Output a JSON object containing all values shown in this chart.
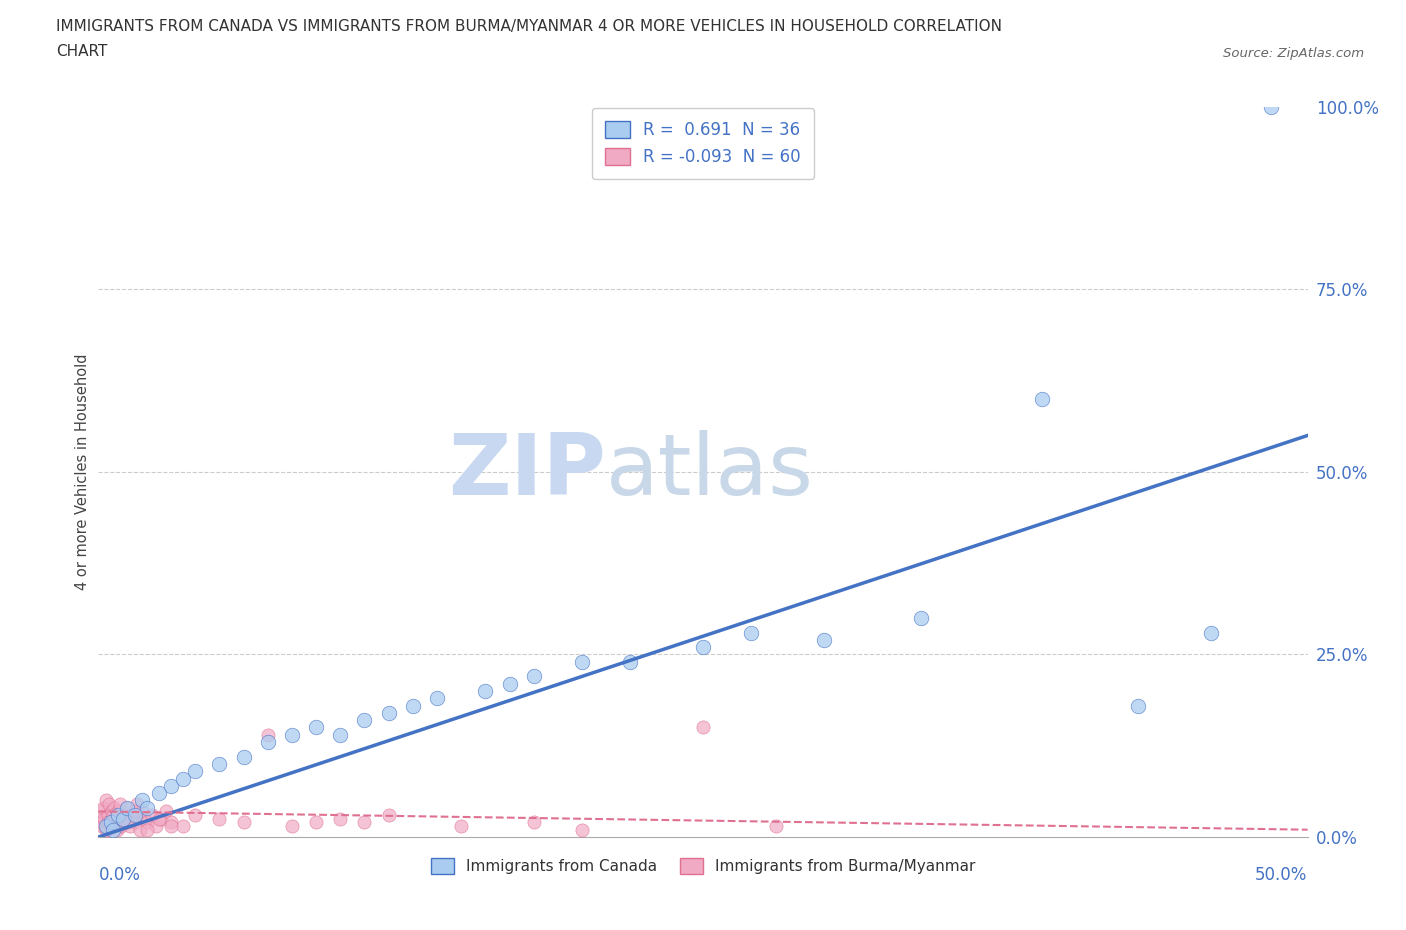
{
  "title_line1": "IMMIGRANTS FROM CANADA VS IMMIGRANTS FROM BURMA/MYANMAR 4 OR MORE VEHICLES IN HOUSEHOLD CORRELATION",
  "title_line2": "CHART",
  "source": "Source: ZipAtlas.com",
  "ylabel_label": "4 or more Vehicles in Household",
  "legend_canada": "Immigrants from Canada",
  "legend_burma": "Immigrants from Burma/Myanmar",
  "R_canada": 0.691,
  "N_canada": 36,
  "R_burma": -0.093,
  "N_burma": 60,
  "canada_fill_color": "#aaccf0",
  "burma_fill_color": "#f0aac4",
  "canada_edge_color": "#4472c4",
  "burma_edge_color": "#e07090",
  "canada_line_color": "#4472c4",
  "burma_line_color": "#e07090",
  "watermark_zip": "ZIP",
  "watermark_atlas": "atlas",
  "watermark_color_zip": "#c8d8f0",
  "watermark_color_atlas": "#c8d8e8",
  "grid_color": "#cccccc",
  "axis_label_color": "#4472c4",
  "title_color": "#333333",
  "xmin": 0,
  "xmax": 50,
  "ymin": 0,
  "ymax": 100,
  "yticks": [
    0,
    25,
    50,
    75,
    100
  ],
  "ytick_labels": [
    "0.0%",
    "25.0%",
    "50.0%",
    "75.0%",
    "100.0%"
  ],
  "xtick_left": "0.0%",
  "xtick_right": "50.0%",
  "canada_x": [
    0.3,
    0.5,
    0.6,
    0.8,
    1.0,
    1.2,
    1.5,
    1.8,
    2.0,
    2.5,
    3.0,
    3.5,
    4.0,
    5.0,
    6.0,
    7.0,
    8.0,
    9.0,
    10.0,
    11.0,
    12.0,
    13.0,
    14.0,
    16.0,
    17.0,
    18.0,
    20.0,
    22.0,
    25.0,
    27.0,
    30.0,
    34.0,
    39.0,
    43.0,
    46.0,
    48.5
  ],
  "canada_y": [
    1.5,
    2.0,
    1.0,
    3.0,
    2.5,
    4.0,
    3.0,
    5.0,
    4.0,
    6.0,
    7.0,
    8.0,
    9.0,
    10.0,
    11.0,
    13.0,
    14.0,
    15.0,
    14.0,
    16.0,
    17.0,
    18.0,
    19.0,
    20.0,
    21.0,
    22.0,
    24.0,
    24.0,
    26.0,
    28.0,
    27.0,
    30.0,
    60.0,
    18.0,
    28.0,
    100.0
  ],
  "burma_x": [
    0.05,
    0.1,
    0.15,
    0.2,
    0.25,
    0.3,
    0.35,
    0.4,
    0.45,
    0.5,
    0.55,
    0.6,
    0.65,
    0.7,
    0.75,
    0.8,
    0.85,
    0.9,
    0.95,
    1.0,
    1.1,
    1.2,
    1.3,
    1.4,
    1.5,
    1.6,
    1.7,
    1.8,
    1.9,
    2.0,
    2.2,
    2.4,
    2.6,
    2.8,
    3.0,
    3.5,
    4.0,
    5.0,
    6.0,
    7.0,
    8.0,
    9.0,
    10.0,
    11.0,
    12.0,
    15.0,
    18.0,
    20.0,
    25.0,
    28.0,
    0.3,
    0.4,
    0.6,
    0.8,
    1.0,
    1.2,
    1.5,
    2.0,
    2.5,
    3.0
  ],
  "burma_y": [
    2.0,
    3.5,
    1.5,
    4.0,
    2.5,
    5.0,
    1.0,
    3.0,
    4.5,
    2.0,
    3.5,
    1.5,
    4.0,
    2.5,
    1.0,
    3.5,
    2.0,
    4.5,
    1.5,
    3.0,
    2.5,
    4.0,
    1.5,
    3.0,
    2.0,
    4.5,
    1.0,
    3.5,
    2.5,
    2.0,
    3.0,
    1.5,
    2.5,
    3.5,
    2.0,
    1.5,
    3.0,
    2.5,
    2.0,
    14.0,
    1.5,
    2.0,
    2.5,
    2.0,
    3.0,
    1.5,
    2.0,
    1.0,
    15.0,
    1.5,
    1.0,
    2.0,
    3.0,
    1.5,
    2.5,
    2.0,
    3.5,
    1.0,
    2.5,
    1.5
  ],
  "canada_trendline_x0": 0,
  "canada_trendline_y0": 0,
  "canada_trendline_x1": 50,
  "canada_trendline_y1": 55,
  "burma_trendline_x0": 0,
  "burma_trendline_y0": 3.5,
  "burma_trendline_x1": 50,
  "burma_trendline_y1": 1.0
}
